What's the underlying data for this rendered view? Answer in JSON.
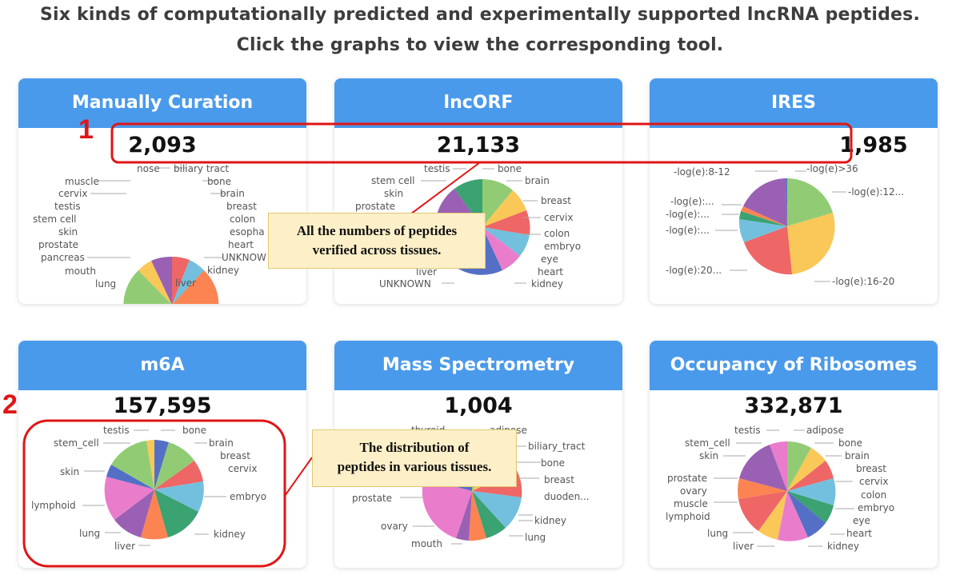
{
  "header": {
    "line1": "Six kinds of computationally predicted and experimentally supported lncRNA peptides.",
    "line2": "Click the graphs to view the corresponding tool."
  },
  "cards": [
    {
      "title": "Manually Curation",
      "count": "2,093",
      "labels": [
        "nose",
        "biliary tract",
        "muscle",
        "bone",
        "cervix",
        "brain",
        "testis",
        "breast",
        "stem cell",
        "colon",
        "skin",
        "esopha",
        "prostate",
        "heart",
        "pancreas",
        "UNKNOW",
        "mouth",
        "kidney",
        "lung",
        "liver"
      ]
    },
    {
      "title": "lncORF",
      "count": "21,133",
      "labels": [
        "testis",
        "bone",
        "stem cell",
        "brain",
        "skin",
        "prostate",
        "breast",
        "cervix",
        "colon",
        "embryo",
        "eye",
        "liver",
        "heart",
        "UNKNOWN",
        "kidney"
      ]
    },
    {
      "title": "IRES",
      "count": "1,985",
      "labels": [
        "-log(e):8-12",
        "-log(e)>36",
        "-log(e):12...",
        "-log(e):...",
        "-log(e):...",
        "-log(e):...",
        "-log(e):20...",
        "-log(e):16-20"
      ]
    },
    {
      "title": "m6A",
      "count": "157,595",
      "labels": [
        "testis",
        "bone",
        "stem_cell",
        "brain",
        "breast",
        "cervix",
        "skin",
        "embryo",
        "lymphoid",
        "lung",
        "kidney",
        "liver"
      ]
    },
    {
      "title": "Mass Spectrometry",
      "count": "1,004",
      "labels": [
        "thyroid",
        "adipose",
        "biliary_tract",
        "bone",
        "breast",
        "prostate",
        "duoden...",
        "kidney",
        "ovary",
        "lung",
        "mouth"
      ]
    },
    {
      "title": "Occupancy of Ribosomes",
      "count": "332,871",
      "labels": [
        "testis",
        "adipose",
        "stem_cell",
        "bone",
        "skin",
        "brain",
        "breast",
        "prostate",
        "cervix",
        "ovary",
        "colon",
        "muscle",
        "embryo",
        "lymphoid",
        "eye",
        "lung",
        "heart",
        "liver",
        "kidney"
      ]
    }
  ],
  "annotations": {
    "marker1": "1",
    "marker2": "2",
    "callout1_line1": "All the numbers of peptides",
    "callout1_line2": "verified across tissues.",
    "callout2_line1": "The distribution of",
    "callout2_line2": "peptides in various tissues."
  },
  "colors": {
    "header_bar": "#4a9aeb",
    "annotation_red": "#e01515",
    "callout_bg": "#fdf0c8"
  }
}
